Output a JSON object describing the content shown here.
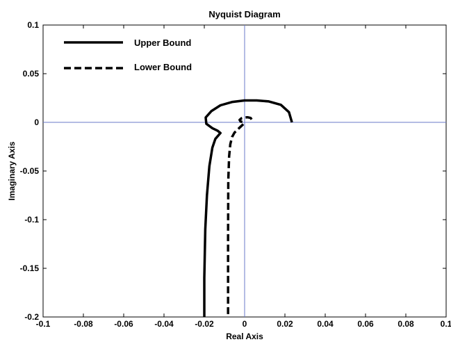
{
  "chart_data": {
    "type": "line",
    "title": "Nyquist Diagram",
    "xlabel": "Real Axis",
    "ylabel": "Imaginary Axis",
    "xlim": [
      -0.1,
      0.1
    ],
    "ylim": [
      -0.2,
      0.1
    ],
    "x_ticks": [
      -0.1,
      -0.08,
      -0.06,
      -0.04,
      -0.02,
      0,
      0.02,
      0.04,
      0.06,
      0.08,
      0.1
    ],
    "x_tick_labels": [
      "-0.1",
      "-0.08",
      "-0.06",
      "-0.04",
      "-0.02",
      "0",
      "0.02",
      "0.04",
      "0.06",
      "0.08",
      "0.1"
    ],
    "y_ticks": [
      0.1,
      0.05,
      0,
      -0.05,
      -0.1,
      -0.15,
      -0.2
    ],
    "y_tick_labels": [
      "0.1",
      "0.05",
      "0",
      "-0.05",
      "-0.1",
      "-0.15",
      "-0.2"
    ],
    "grid": false,
    "axis_line_color": "#6a78c8",
    "legend_position": "top-left",
    "series": [
      {
        "name": "Upper Bound",
        "style": "solid",
        "color": "#000000",
        "x": [
          0.0235,
          0.022,
          0.018,
          0.012,
          0.006,
          0.0,
          -0.006,
          -0.012,
          -0.0165,
          -0.0193,
          -0.019,
          -0.016,
          -0.0135,
          -0.012,
          -0.0145,
          -0.016,
          -0.0175,
          -0.0187,
          -0.0195,
          -0.02,
          -0.02
        ],
        "y": [
          0.0,
          0.0105,
          0.018,
          0.0215,
          0.0225,
          0.0225,
          0.021,
          0.0175,
          0.0115,
          0.005,
          -0.0015,
          -0.006,
          -0.0085,
          -0.011,
          -0.017,
          -0.026,
          -0.045,
          -0.075,
          -0.11,
          -0.16,
          -0.2
        ]
      },
      {
        "name": "Lower Bound",
        "style": "dashed",
        "color": "#000000",
        "x": [
          0.0035,
          0.003,
          0.0015,
          0.0,
          -0.0015,
          -0.0025,
          -0.002,
          -0.0005,
          -0.0005,
          -0.002,
          -0.0035,
          -0.005,
          -0.0062,
          -0.0071,
          -0.0077,
          -0.0081,
          -0.0082,
          -0.0082
        ],
        "y": [
          0.003,
          0.0045,
          0.0052,
          0.005,
          0.0042,
          0.0025,
          0.0008,
          0.0003,
          -0.0015,
          -0.0045,
          -0.0075,
          -0.0105,
          -0.015,
          -0.0225,
          -0.035,
          -0.06,
          -0.12,
          -0.2
        ]
      }
    ]
  }
}
